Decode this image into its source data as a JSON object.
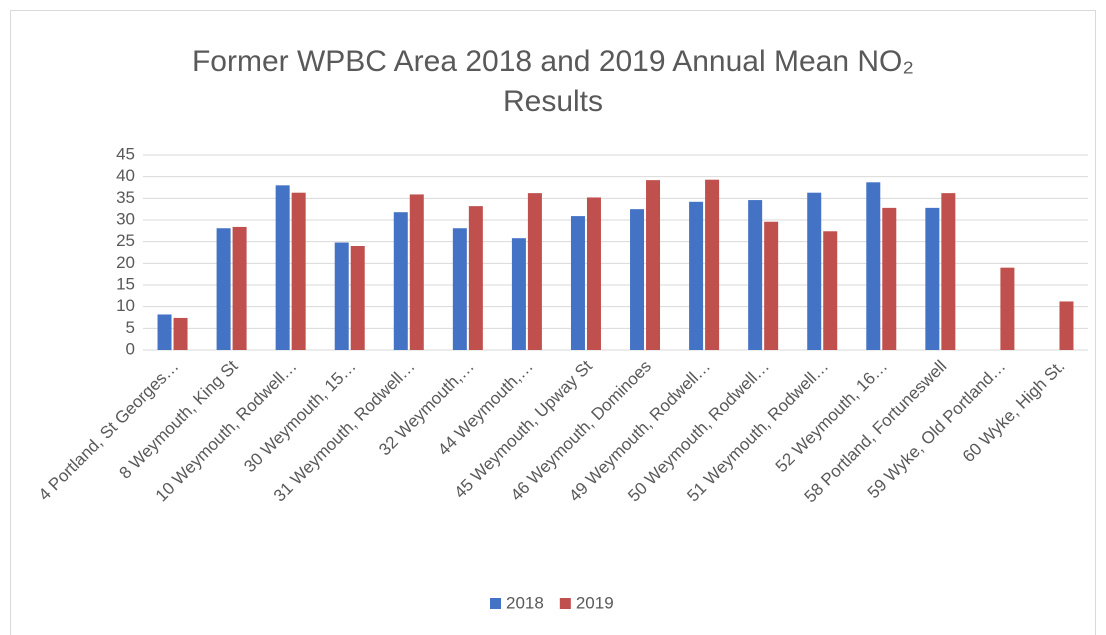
{
  "chart_data": {
    "type": "bar",
    "title": "Former WPBC Area 2018 and 2019 Annual Mean NO₂ Results",
    "categories": [
      "4 Portland, St Georges…",
      "8 Weymouth, King St",
      "10 Weymouth, Rodwell…",
      "30 Weymouth, 15…",
      "31 Weymouth, Rodwell…",
      "32 Weymouth,…",
      "44 Weymouth,…",
      "45 Weymouth, Upway St",
      "46 Weymouth, Dominoes",
      "49 Weymouth, Rodwell…",
      "50 Weymouth, Rodwell…",
      "51 Weymouth, Rodwell…",
      "52 Weymouth, 16…",
      "58 Portland, Fortuneswell",
      "59 Wyke, Old Portland…",
      "60 Wyke, High St."
    ],
    "series": [
      {
        "name": "2018",
        "color": "#4472c4",
        "values": [
          8.2,
          28.1,
          38.0,
          24.8,
          31.8,
          28.1,
          25.8,
          30.9,
          32.5,
          34.2,
          34.6,
          36.3,
          38.7,
          32.8,
          null,
          null
        ]
      },
      {
        "name": "2019",
        "color": "#c0504d",
        "values": [
          7.4,
          28.4,
          36.3,
          24.0,
          35.9,
          33.2,
          36.2,
          35.2,
          39.2,
          39.3,
          29.6,
          27.4,
          32.8,
          36.2,
          19.0,
          11.2
        ]
      }
    ],
    "ylim": [
      0,
      45
    ],
    "yticks": [
      0,
      5,
      10,
      15,
      20,
      25,
      30,
      35,
      40,
      45
    ],
    "grid": true,
    "legend": "bottom"
  }
}
